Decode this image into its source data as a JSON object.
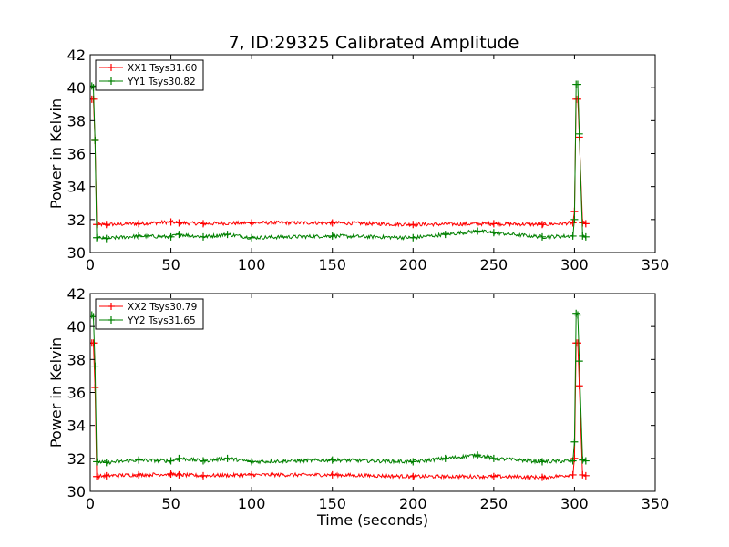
{
  "figure_title": "7, ID:29325 Calibrated Amplitude",
  "colors": {
    "xx": "#ff0000",
    "yy": "#008000",
    "axes": "#000000",
    "background": "#ffffff"
  },
  "chart_data": [
    {
      "type": "line",
      "title": "7, ID:29325 Calibrated Amplitude",
      "xlabel": "",
      "ylabel": "Power in Kelvin",
      "xlim": [
        0,
        350
      ],
      "ylim": [
        30,
        42
      ],
      "x_ticks": [
        "0",
        "50",
        "100",
        "150",
        "200",
        "250",
        "300",
        "350"
      ],
      "y_ticks": [
        "30",
        "32",
        "34",
        "36",
        "38",
        "40",
        "42"
      ],
      "grid": false,
      "legend_position": "top-left",
      "series": [
        {
          "name": "XX1 Tsys31.60",
          "color": "#ff0000",
          "marker": "+",
          "x": [
            1,
            2,
            3,
            4,
            10,
            30,
            50,
            55,
            70,
            100,
            150,
            200,
            250,
            280,
            299,
            300,
            301,
            302,
            303,
            305,
            307
          ],
          "y": [
            39.3,
            39.3,
            36.8,
            31.7,
            31.7,
            31.75,
            31.85,
            31.8,
            31.75,
            31.8,
            31.8,
            31.7,
            31.75,
            31.7,
            31.8,
            32.5,
            39.3,
            39.3,
            37.0,
            31.8,
            31.75
          ]
        },
        {
          "name": "YY1 Tsys30.82",
          "color": "#008000",
          "marker": "+",
          "x": [
            1,
            2,
            3,
            4,
            10,
            30,
            50,
            55,
            70,
            85,
            100,
            150,
            200,
            220,
            240,
            250,
            280,
            299,
            300,
            301,
            302,
            303,
            305,
            307
          ],
          "y": [
            40.1,
            40.0,
            36.8,
            30.9,
            30.85,
            31.0,
            30.95,
            31.1,
            30.95,
            31.1,
            30.9,
            31.0,
            30.9,
            31.1,
            31.3,
            31.2,
            30.95,
            31.0,
            32.0,
            40.2,
            40.2,
            37.2,
            31.0,
            30.95
          ]
        }
      ]
    },
    {
      "type": "line",
      "title": "",
      "xlabel": "Time (seconds)",
      "ylabel": "Power in Kelvin",
      "xlim": [
        0,
        350
      ],
      "ylim": [
        30,
        42
      ],
      "x_ticks": [
        "0",
        "50",
        "100",
        "150",
        "200",
        "250",
        "300",
        "350"
      ],
      "y_ticks": [
        "30",
        "32",
        "34",
        "36",
        "38",
        "40",
        "42"
      ],
      "grid": false,
      "legend_position": "top-left",
      "series": [
        {
          "name": "XX2 Tsys30.79",
          "color": "#ff0000",
          "marker": "+",
          "x": [
            1,
            2,
            3,
            4,
            10,
            30,
            50,
            55,
            70,
            100,
            150,
            200,
            250,
            280,
            299,
            300,
            301,
            302,
            303,
            305,
            307
          ],
          "y": [
            39.0,
            39.0,
            36.3,
            30.9,
            30.95,
            31.0,
            31.05,
            31.0,
            30.95,
            31.0,
            31.0,
            30.9,
            30.9,
            30.85,
            31.0,
            32.0,
            39.0,
            39.0,
            36.4,
            31.0,
            30.95
          ]
        },
        {
          "name": "YY2 Tsys31.65",
          "color": "#008000",
          "marker": "+",
          "x": [
            1,
            2,
            3,
            4,
            10,
            30,
            50,
            55,
            70,
            85,
            100,
            150,
            200,
            220,
            240,
            250,
            280,
            299,
            300,
            301,
            302,
            303,
            305,
            307
          ],
          "y": [
            40.7,
            40.6,
            37.6,
            31.8,
            31.75,
            31.9,
            31.85,
            32.0,
            31.85,
            32.0,
            31.8,
            31.9,
            31.8,
            32.0,
            32.2,
            32.0,
            31.8,
            31.85,
            33.0,
            40.8,
            40.7,
            37.9,
            31.9,
            31.85
          ]
        }
      ]
    }
  ]
}
